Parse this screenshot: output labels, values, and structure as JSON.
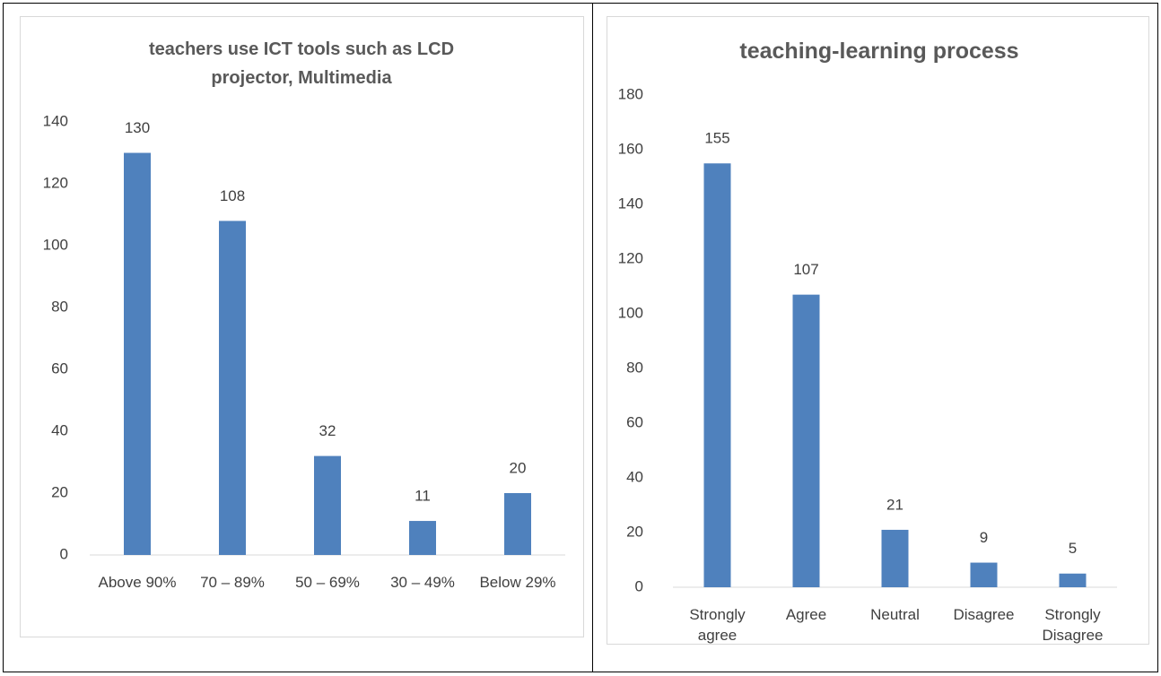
{
  "chart_data": [
    {
      "type": "bar",
      "title": "teachers use ICT tools such as LCD projector, Multimedia",
      "categories": [
        "Above 90%",
        "70 – 89%",
        "50 – 69%",
        "30 – 49%",
        "Below 29%"
      ],
      "values": [
        130,
        108,
        32,
        11,
        20
      ],
      "color": "#4f81bd",
      "ylim": [
        0,
        140
      ],
      "yticks": [
        0,
        20,
        40,
        60,
        80,
        100,
        120,
        140
      ],
      "grid": false
    },
    {
      "type": "bar",
      "title": "teaching-learning process",
      "categories": [
        "Strongly agree",
        "Agree",
        "Neutral",
        "Disagree",
        "Strongly Disagree"
      ],
      "values": [
        155,
        107,
        21,
        9,
        5
      ],
      "color": "#4f81bd",
      "ylim": [
        0,
        180
      ],
      "yticks": [
        0,
        20,
        40,
        60,
        80,
        100,
        120,
        140,
        160,
        180
      ],
      "grid": false
    }
  ]
}
